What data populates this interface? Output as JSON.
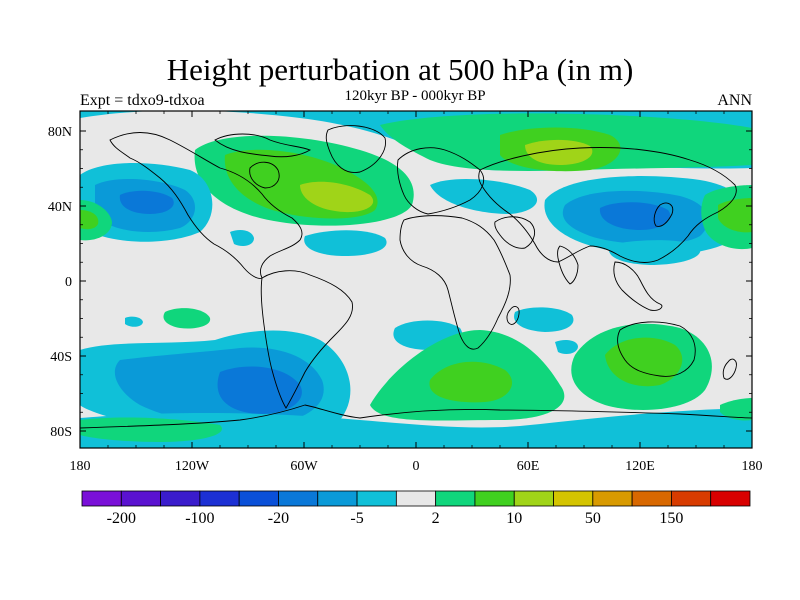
{
  "title": "Height perturbation at 500 hPa (in m)",
  "subtitle": "120kyr BP - 000kyr BP",
  "left_label": "Expt = tdxo9-tdxoa",
  "right_label": "ANN",
  "lat_ticks": [
    "80N",
    "40N",
    "0",
    "40S",
    "80S"
  ],
  "lon_ticks": [
    "180",
    "120W",
    "60W",
    "0",
    "60E",
    "120E",
    "180"
  ],
  "colorbar": {
    "labels": [
      "-200",
      "-100",
      "-20",
      "-5",
      "2",
      "10",
      "50",
      "150"
    ],
    "colors": [
      "#7a10d8",
      "#5a12d0",
      "#3a1ccc",
      "#1c30d4",
      "#0a50d8",
      "#0a78d8",
      "#0a9ad8",
      "#10c0d8",
      "#e8e8e8",
      "#10d67c",
      "#40d020",
      "#a0d418",
      "#d4c400",
      "#d89a00",
      "#d86800",
      "#d83c00",
      "#d80000"
    ]
  },
  "palette": {
    "neutral": "#e8e8e8",
    "neg_weak": "#10c0d8",
    "neg_mod": "#0a9ad8",
    "neg_strong": "#0a78d8",
    "neg_vstrong": "#0a50d8",
    "pos_weak": "#10d67c",
    "pos_mod": "#40d020",
    "pos_strong": "#a0d418"
  }
}
